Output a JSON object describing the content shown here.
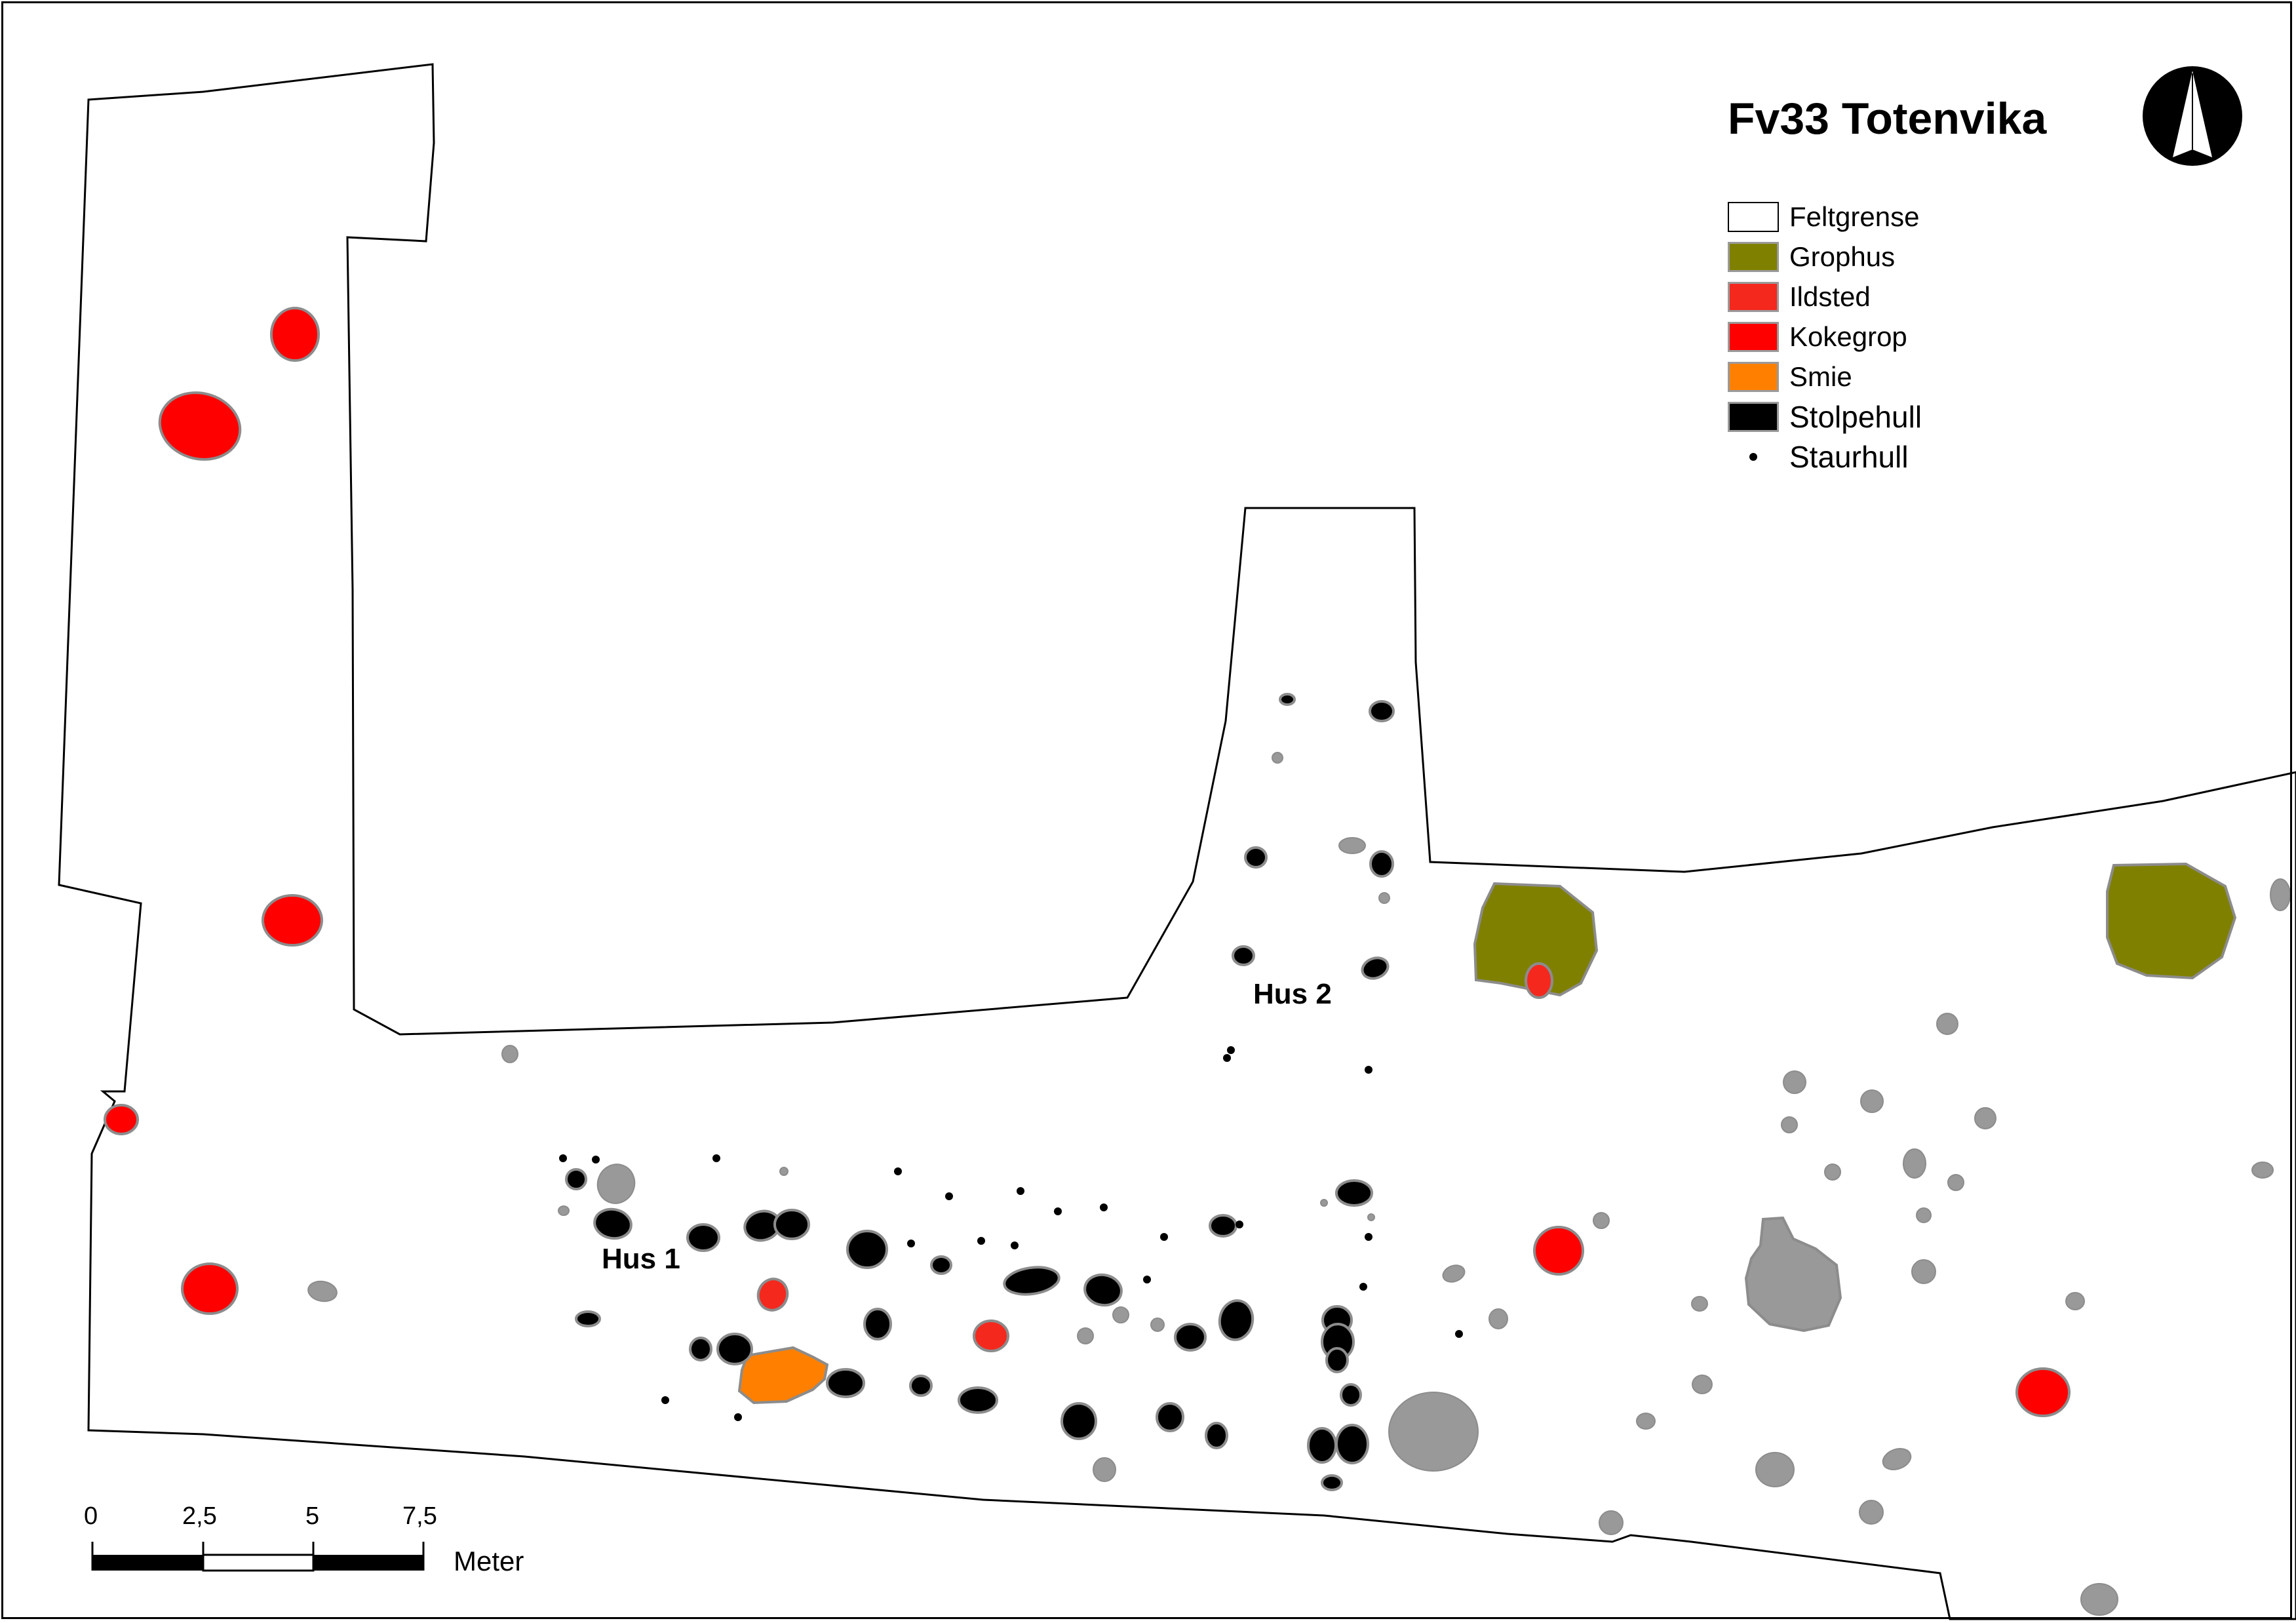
{
  "title": "Fv33 Totenvika",
  "legend": [
    {
      "label": "Feltgrense",
      "icon": "outline-swatch",
      "fill": "#ffffff"
    },
    {
      "label": "Grophus",
      "icon": "fill-swatch",
      "fill": "#808000"
    },
    {
      "label": "Ildsted",
      "icon": "fill-swatch",
      "fill": "#f5281e"
    },
    {
      "label": "Kokegrop",
      "icon": "fill-swatch",
      "fill": "#ff0000"
    },
    {
      "label": "Smie",
      "icon": "fill-swatch",
      "fill": "#ff8000"
    },
    {
      "label": "Stolpehull",
      "icon": "fill-swatch",
      "fill": "#000000"
    },
    {
      "label": "Staurhull",
      "icon": "dot",
      "fill": "#000000"
    }
  ],
  "houses": {
    "hus1": "Hus 1",
    "hus2": "Hus 2"
  },
  "scale": {
    "ticks": [
      "0",
      "2,5",
      "5",
      "7,5"
    ],
    "unit": "Meter"
  },
  "north_arrow": {
    "icon": "north-arrow-icon"
  },
  "colors": {
    "boundary": "#000000",
    "unclassified": "#999999",
    "outline": "#8c8c8c",
    "grophus": "#808000",
    "ildsted": "#f5281e",
    "kokegrop": "#ff0000",
    "smie": "#ff8000",
    "stolpehull": "#000000"
  }
}
